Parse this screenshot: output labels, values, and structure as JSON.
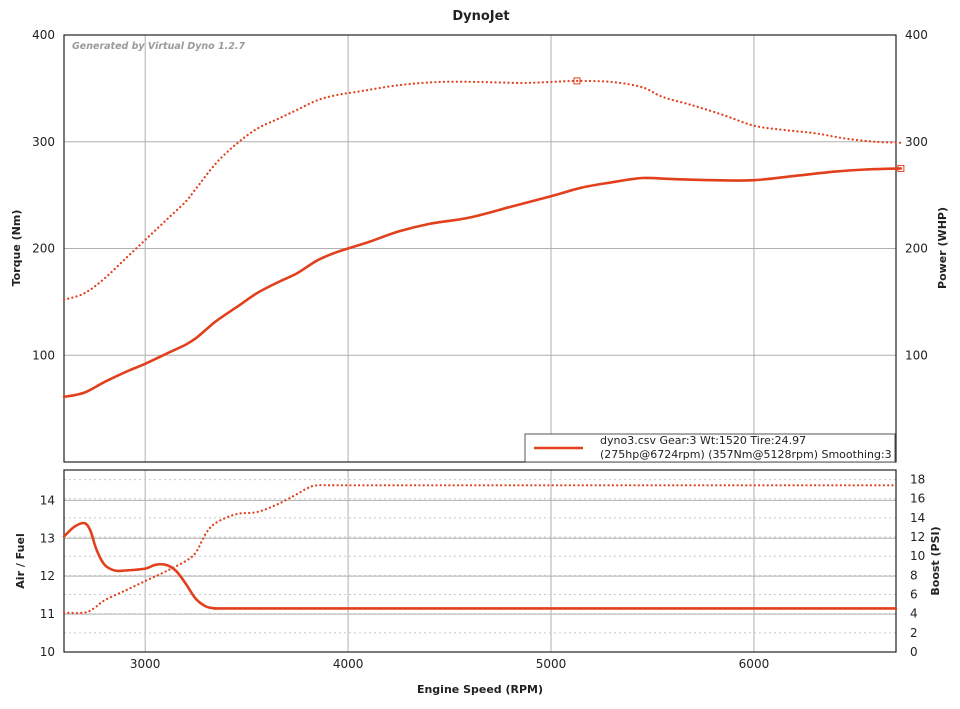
{
  "colors": {
    "series": "#e2401c",
    "grid": "#b0b0b0",
    "frame": "#222222"
  },
  "chart_data": [
    {
      "type": "line",
      "title": "DynoJet",
      "watermark": "Generated by Virtual Dyno 1.2.7",
      "xlabel": "",
      "ylabel": "Torque (Nm)",
      "y2label": "Power (WHP)",
      "xlim": [
        2600,
        6700
      ],
      "ylim": [
        0,
        400
      ],
      "y2lim": [
        0,
        400
      ],
      "y_ticks": [
        100,
        200,
        300,
        400
      ],
      "y2_ticks": [
        100,
        200,
        300,
        400
      ],
      "grid": true,
      "legend": {
        "position": "bottom-right",
        "line1": "dyno3.csv Gear:3 Wt:1520 Tire:24.97",
        "line2": "(275hp@6724rpm) (357Nm@5128rpm) Smoothing:3"
      },
      "series": [
        {
          "style": "dotted",
          "axis": "left",
          "x": [
            2600,
            2700,
            2800,
            2900,
            3000,
            3100,
            3200,
            3250,
            3350,
            3450,
            3550,
            3650,
            3750,
            3850,
            3950,
            4050,
            4250,
            4450,
            4650,
            4850,
            5000,
            5128,
            5300,
            5450,
            5550,
            5700,
            5850,
            6000,
            6150,
            6300,
            6450,
            6600,
            6724
          ],
          "y": [
            152,
            158,
            172,
            190,
            208,
            226,
            244,
            256,
            280,
            298,
            312,
            321,
            330,
            339,
            344,
            347,
            353,
            356,
            356,
            355,
            356,
            357,
            356,
            351,
            342,
            334,
            325,
            315,
            311,
            308,
            303,
            300,
            299
          ]
        },
        {
          "style": "solid",
          "axis": "right",
          "x": [
            2600,
            2700,
            2800,
            2900,
            3000,
            3100,
            3200,
            3250,
            3300,
            3350,
            3450,
            3550,
            3650,
            3750,
            3850,
            3950,
            4100,
            4250,
            4400,
            4600,
            4800,
            5000,
            5150,
            5300,
            5450,
            5600,
            5800,
            6000,
            6200,
            6400,
            6550,
            6724
          ],
          "y": [
            61,
            65,
            75,
            84,
            92,
            101,
            110,
            116,
            124,
            132,
            145,
            158,
            168,
            177,
            189,
            197,
            206,
            216,
            223,
            229,
            239,
            249,
            257,
            262,
            266,
            265,
            264,
            264,
            268,
            272,
            274,
            275
          ]
        }
      ]
    },
    {
      "type": "line",
      "xlabel": "Engine Speed (RPM)",
      "ylabel": "Air / Fuel",
      "y2label": "Boost (PSI)",
      "xlim": [
        2600,
        6700
      ],
      "ylim": [
        10,
        14.8
      ],
      "y2lim": [
        0,
        19
      ],
      "y_ticks": [
        10,
        11,
        12,
        13,
        14
      ],
      "y2_ticks": [
        0,
        2,
        4,
        6,
        8,
        10,
        12,
        14,
        16,
        18
      ],
      "x_ticks": [
        3000,
        4000,
        5000,
        6000
      ],
      "grid": true,
      "series": [
        {
          "style": "solid",
          "axis": "left",
          "x": [
            2600,
            2650,
            2700,
            2730,
            2760,
            2800,
            2850,
            2900,
            3000,
            3050,
            3100,
            3150,
            3200,
            3250,
            3300,
            3350,
            3400,
            4000,
            5000,
            6000,
            6700
          ],
          "y": [
            13.05,
            13.3,
            13.4,
            13.2,
            12.7,
            12.3,
            12.15,
            12.15,
            12.2,
            12.3,
            12.3,
            12.15,
            11.8,
            11.4,
            11.2,
            11.15,
            11.15,
            11.15,
            11.15,
            11.15,
            11.15
          ]
        },
        {
          "style": "dotted",
          "axis": "right",
          "x": [
            2600,
            2700,
            2750,
            2800,
            2900,
            3000,
            3100,
            3200,
            3250,
            3300,
            3350,
            3450,
            3550,
            3650,
            3750,
            3800,
            3850,
            4000,
            5000,
            6000,
            6700
          ],
          "y": [
            4.1,
            4.1,
            4.6,
            5.4,
            6.4,
            7.4,
            8.4,
            9.5,
            10.4,
            12.4,
            13.5,
            14.4,
            14.6,
            15.4,
            16.5,
            17.1,
            17.4,
            17.4,
            17.4,
            17.4,
            17.4
          ]
        }
      ]
    }
  ]
}
